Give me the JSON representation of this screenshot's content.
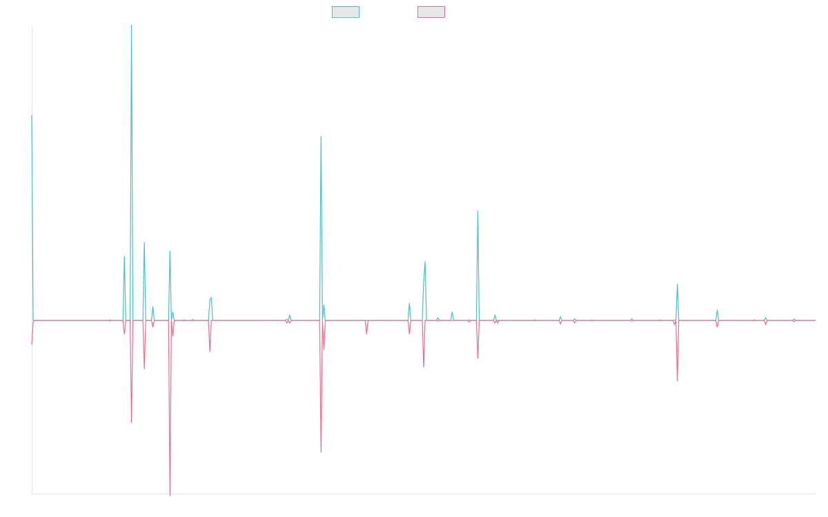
{
  "chart_data": {
    "type": "line",
    "title": "",
    "xlabel": "",
    "ylabel": "",
    "legend": "top-center",
    "grid": false,
    "x_range": [
      0,
      275
    ],
    "ylim": [
      -100,
      170
    ],
    "series": [
      {
        "color": "#4bc0c0",
        "points": [
          [
            0,
            118
          ],
          [
            0.5,
            0
          ],
          [
            1,
            0
          ],
          [
            27,
            0
          ],
          [
            27.5,
            0.3
          ],
          [
            28,
            0
          ],
          [
            32,
            0
          ],
          [
            32.5,
            37
          ],
          [
            33,
            0
          ],
          [
            34.5,
            0
          ],
          [
            35,
            170
          ],
          [
            35.5,
            0
          ],
          [
            39,
            0
          ],
          [
            39.5,
            45
          ],
          [
            40,
            0
          ],
          [
            42,
            0
          ],
          [
            42.5,
            8
          ],
          [
            43,
            0
          ],
          [
            48,
            0
          ],
          [
            48.5,
            40
          ],
          [
            49,
            0
          ],
          [
            49.5,
            5
          ],
          [
            50,
            0
          ],
          [
            53,
            0
          ],
          [
            53.5,
            0.3
          ],
          [
            54,
            0
          ],
          [
            56,
            0
          ],
          [
            56.5,
            0.5
          ],
          [
            57,
            0
          ],
          [
            57.5,
            0
          ],
          [
            62,
            0
          ],
          [
            62.5,
            12
          ],
          [
            63,
            13
          ],
          [
            63.5,
            0
          ],
          [
            89,
            0
          ],
          [
            89.5,
            0.6
          ],
          [
            90,
            0
          ],
          [
            90.5,
            3
          ],
          [
            91,
            0
          ],
          [
            101,
            0
          ],
          [
            101.5,
            106
          ],
          [
            102,
            0
          ],
          [
            102.5,
            9
          ],
          [
            103,
            0
          ],
          [
            117,
            0
          ],
          [
            117.5,
            0
          ],
          [
            132,
            0
          ],
          [
            132.5,
            10
          ],
          [
            133,
            0
          ],
          [
            137,
            0
          ],
          [
            137.5,
            22
          ],
          [
            138,
            34
          ],
          [
            138.5,
            0
          ],
          [
            142,
            0
          ],
          [
            142.5,
            1.5
          ],
          [
            143,
            0
          ],
          [
            147,
            0
          ],
          [
            147.5,
            5
          ],
          [
            148,
            0
          ],
          [
            153,
            0
          ],
          [
            153.5,
            0.3
          ],
          [
            154,
            0
          ],
          [
            156,
            0
          ],
          [
            156.5,
            63
          ],
          [
            157,
            0
          ],
          [
            162,
            0
          ],
          [
            162.5,
            3
          ],
          [
            163,
            0
          ],
          [
            163.5,
            0
          ],
          [
            164,
            0
          ],
          [
            176,
            0
          ],
          [
            176.5,
            0.3
          ],
          [
            177,
            0
          ],
          [
            185,
            0
          ],
          [
            185.5,
            2
          ],
          [
            186,
            0
          ],
          [
            190,
            0
          ],
          [
            190.5,
            1
          ],
          [
            191,
            0
          ],
          [
            196,
            0
          ],
          [
            196.5,
            0.3
          ],
          [
            197,
            0
          ],
          [
            210,
            0
          ],
          [
            210.5,
            1
          ],
          [
            211,
            0
          ],
          [
            220,
            0
          ],
          [
            220.5,
            0.3
          ],
          [
            221,
            0
          ],
          [
            225,
            0
          ],
          [
            225.5,
            0.3
          ],
          [
            226,
            0
          ],
          [
            226.5,
            21
          ],
          [
            227,
            0
          ],
          [
            240,
            0
          ],
          [
            240.5,
            6
          ],
          [
            241,
            0
          ],
          [
            253,
            0
          ],
          [
            253.5,
            0.3
          ],
          [
            254,
            0
          ],
          [
            257,
            0
          ],
          [
            257.5,
            1.5
          ],
          [
            258,
            0
          ],
          [
            267,
            0
          ],
          [
            267.5,
            0.8
          ],
          [
            268,
            0
          ],
          [
            275,
            0
          ]
        ]
      },
      {
        "color": "#f06a8a",
        "points": [
          [
            0,
            -14
          ],
          [
            0.5,
            -1
          ],
          [
            1,
            0
          ],
          [
            27,
            0
          ],
          [
            27.5,
            -0.3
          ],
          [
            28,
            0
          ],
          [
            32,
            0
          ],
          [
            32.5,
            -8
          ],
          [
            33,
            0
          ],
          [
            34.5,
            0
          ],
          [
            35,
            -59
          ],
          [
            35.5,
            0
          ],
          [
            39,
            0
          ],
          [
            39.5,
            -28
          ],
          [
            40,
            0
          ],
          [
            42,
            0
          ],
          [
            42.5,
            -4
          ],
          [
            43,
            0
          ],
          [
            48,
            0
          ],
          [
            48.5,
            -101
          ],
          [
            49,
            0
          ],
          [
            49.5,
            -9
          ],
          [
            50,
            0
          ],
          [
            53,
            0
          ],
          [
            53.5,
            -0.3
          ],
          [
            54,
            0
          ],
          [
            56,
            0
          ],
          [
            56.5,
            -0.3
          ],
          [
            57,
            0
          ],
          [
            57.5,
            0
          ],
          [
            62,
            0
          ],
          [
            62.5,
            -18
          ],
          [
            63,
            0
          ],
          [
            89,
            0
          ],
          [
            89.5,
            -1.5
          ],
          [
            90,
            0
          ],
          [
            90.5,
            -1.5
          ],
          [
            91,
            0
          ],
          [
            101,
            0
          ],
          [
            101.5,
            -76
          ],
          [
            102,
            0
          ],
          [
            102.5,
            -17
          ],
          [
            103,
            0
          ],
          [
            117,
            0
          ],
          [
            117.5,
            -8
          ],
          [
            118,
            0
          ],
          [
            132,
            0
          ],
          [
            132.5,
            -8
          ],
          [
            133,
            0
          ],
          [
            137,
            0
          ],
          [
            137.5,
            -27
          ],
          [
            138,
            0
          ],
          [
            142,
            0
          ],
          [
            142.5,
            -0.5
          ],
          [
            143,
            0
          ],
          [
            147,
            0
          ],
          [
            147.5,
            -0.2
          ],
          [
            148,
            0
          ],
          [
            153,
            0
          ],
          [
            153.5,
            -1
          ],
          [
            154,
            0
          ],
          [
            156,
            0
          ],
          [
            156.5,
            -22
          ],
          [
            157,
            0
          ],
          [
            162,
            0
          ],
          [
            162.5,
            -1.5
          ],
          [
            163,
            0
          ],
          [
            163.5,
            -1.5
          ],
          [
            164,
            0
          ],
          [
            176,
            0
          ],
          [
            176.5,
            -0.2
          ],
          [
            177,
            0
          ],
          [
            185,
            0
          ],
          [
            185.5,
            -2
          ],
          [
            186,
            0
          ],
          [
            190,
            0
          ],
          [
            190.5,
            -1.5
          ],
          [
            191,
            0
          ],
          [
            196,
            0
          ],
          [
            196.5,
            -0.2
          ],
          [
            197,
            0
          ],
          [
            210,
            0
          ],
          [
            210.5,
            -0.5
          ],
          [
            211,
            0
          ],
          [
            220,
            0
          ],
          [
            220.5,
            -0.2
          ],
          [
            221,
            0
          ],
          [
            225,
            0
          ],
          [
            225.5,
            -2.5
          ],
          [
            226,
            0
          ],
          [
            226.5,
            -35
          ],
          [
            227,
            0
          ],
          [
            240,
            0
          ],
          [
            240.5,
            -4
          ],
          [
            241,
            0
          ],
          [
            253,
            0
          ],
          [
            253.5,
            -0.2
          ],
          [
            254,
            0
          ],
          [
            257,
            0
          ],
          [
            257.5,
            -2.5
          ],
          [
            258,
            0
          ],
          [
            267,
            0
          ],
          [
            267.5,
            -0.8
          ],
          [
            268,
            0
          ],
          [
            275,
            0
          ]
        ]
      }
    ]
  }
}
